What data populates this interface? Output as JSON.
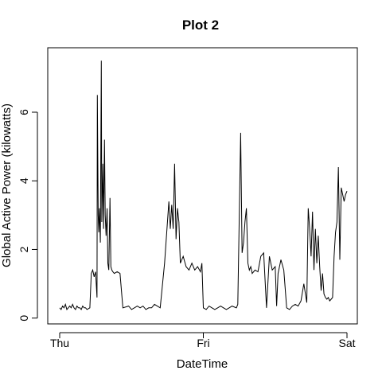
{
  "chart_data": {
    "type": "line",
    "title": "Plot 2",
    "xlabel": "DateTime",
    "ylabel": "Global Active Power (kilowatts)",
    "xlim": [
      0,
      2
    ],
    "ylim": [
      -0.1,
      7.6
    ],
    "x_ticks": [
      {
        "value": 0,
        "label": "Thu"
      },
      {
        "value": 1,
        "label": "Fri"
      },
      {
        "value": 2,
        "label": "Sat"
      }
    ],
    "y_ticks": [
      {
        "value": 0,
        "label": "0"
      },
      {
        "value": 2,
        "label": "2"
      },
      {
        "value": 4,
        "label": "4"
      },
      {
        "value": 6,
        "label": "6"
      }
    ],
    "grid": false,
    "series": [
      {
        "name": "Global Active Power",
        "color": "#000000",
        "x": [
          0.0,
          0.01,
          0.02,
          0.03,
          0.04,
          0.05,
          0.06,
          0.07,
          0.08,
          0.09,
          0.1,
          0.11,
          0.12,
          0.13,
          0.14,
          0.15,
          0.16,
          0.17,
          0.18,
          0.19,
          0.21,
          0.22,
          0.23,
          0.24,
          0.25,
          0.26,
          0.262,
          0.268,
          0.272,
          0.277,
          0.283,
          0.29,
          0.293,
          0.3,
          0.305,
          0.312,
          0.317,
          0.323,
          0.33,
          0.335,
          0.342,
          0.35,
          0.356,
          0.363,
          0.37,
          0.38,
          0.4,
          0.42,
          0.44,
          0.48,
          0.5,
          0.52,
          0.54,
          0.56,
          0.58,
          0.6,
          0.62,
          0.64,
          0.66,
          0.7,
          0.73,
          0.74,
          0.75,
          0.76,
          0.77,
          0.78,
          0.79,
          0.8,
          0.81,
          0.82,
          0.83,
          0.84,
          0.86,
          0.88,
          0.9,
          0.92,
          0.94,
          0.96,
          0.98,
          0.99,
          1.0,
          1.02,
          1.04,
          1.06,
          1.08,
          1.1,
          1.12,
          1.14,
          1.16,
          1.18,
          1.2,
          1.23,
          1.24,
          1.26,
          1.27,
          1.28,
          1.29,
          1.3,
          1.31,
          1.32,
          1.33,
          1.34,
          1.36,
          1.38,
          1.4,
          1.42,
          1.44,
          1.46,
          1.48,
          1.5,
          1.51,
          1.52,
          1.54,
          1.56,
          1.58,
          1.6,
          1.62,
          1.64,
          1.66,
          1.68,
          1.7,
          1.72,
          1.73,
          1.74,
          1.75,
          1.76,
          1.77,
          1.78,
          1.79,
          1.8,
          1.81,
          1.82,
          1.83,
          1.84,
          1.85,
          1.86,
          1.87,
          1.88,
          1.89,
          1.9,
          1.91,
          1.92,
          1.93,
          1.94,
          1.95,
          1.96,
          1.97,
          1.98,
          1.99,
          2.0
        ],
        "y": [
          0.3,
          0.25,
          0.35,
          0.3,
          0.4,
          0.25,
          0.3,
          0.35,
          0.3,
          0.4,
          0.3,
          0.25,
          0.35,
          0.3,
          0.3,
          0.25,
          0.35,
          0.3,
          0.3,
          0.25,
          0.3,
          1.3,
          1.4,
          1.2,
          1.35,
          0.6,
          6.5,
          3.0,
          2.5,
          3.2,
          2.2,
          7.5,
          2.8,
          4.5,
          2.6,
          5.2,
          3.0,
          2.4,
          3.2,
          1.6,
          1.4,
          3.5,
          1.5,
          1.4,
          1.35,
          1.3,
          1.35,
          1.3,
          0.3,
          0.35,
          0.25,
          0.3,
          0.35,
          0.3,
          0.35,
          0.25,
          0.3,
          0.3,
          0.4,
          0.3,
          1.6,
          2.2,
          2.8,
          3.4,
          2.6,
          3.3,
          2.6,
          4.5,
          2.3,
          3.2,
          2.8,
          1.6,
          1.8,
          1.5,
          1.4,
          1.6,
          1.4,
          1.5,
          1.35,
          1.6,
          0.3,
          0.25,
          0.35,
          0.3,
          0.25,
          0.3,
          0.35,
          0.3,
          0.25,
          0.3,
          0.35,
          0.3,
          0.4,
          5.4,
          1.9,
          2.2,
          2.8,
          3.2,
          1.6,
          1.4,
          1.5,
          1.3,
          1.4,
          1.35,
          1.8,
          1.9,
          0.3,
          1.8,
          1.4,
          1.5,
          0.35,
          1.3,
          1.7,
          1.4,
          0.3,
          0.25,
          0.35,
          0.4,
          0.35,
          0.5,
          1.0,
          0.45,
          3.2,
          2.6,
          1.8,
          3.1,
          1.4,
          2.6,
          1.6,
          2.4,
          1.5,
          0.8,
          1.3,
          0.7,
          0.6,
          0.55,
          0.6,
          0.5,
          0.55,
          0.6,
          1.8,
          2.5,
          2.8,
          4.4,
          1.7,
          3.8,
          3.6,
          3.4,
          3.6,
          3.7
        ]
      }
    ]
  }
}
